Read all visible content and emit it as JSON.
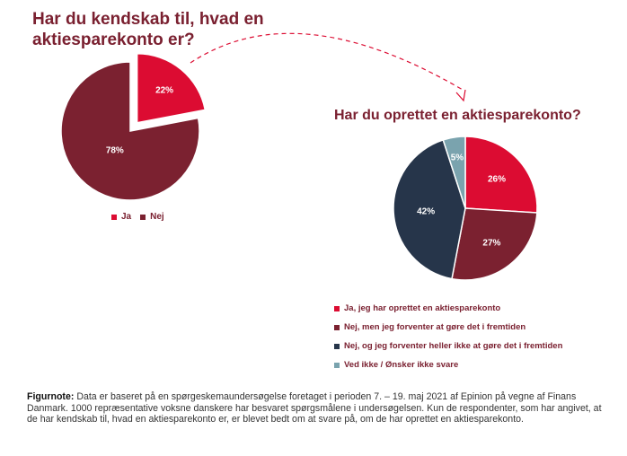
{
  "chart_data": [
    {
      "type": "pie",
      "title": "Har du kendskab til, hvad en aktiesparekonto er?",
      "categories": [
        "Ja",
        "Nej"
      ],
      "values": [
        22,
        78
      ],
      "value_labels": [
        "22%",
        "78%"
      ],
      "colors": [
        "#dc0c32",
        "#7b2130"
      ],
      "exploded": [
        "Ja"
      ],
      "legend_position": "bottom"
    },
    {
      "type": "pie",
      "title": "Har du oprettet en aktiesparekonto?",
      "categories": [
        "Ja, jeg har oprettet en aktiesparekonto",
        "Nej, men jeg forventer at gøre det i fremtiden",
        "Nej, og jeg forventer heller ikke at gøre det i fremtiden",
        "Ved ikke / Ønsker ikke svare"
      ],
      "values": [
        26,
        27,
        42,
        5
      ],
      "value_labels": [
        "26%",
        "27%",
        "42%",
        "5%"
      ],
      "colors": [
        "#dc0c32",
        "#7b2130",
        "#26354a",
        "#7aa3ae"
      ],
      "legend_position": "bottom"
    }
  ],
  "note": {
    "label": "Figurnote:",
    "text": " Data er baseret på en spørgeskemaundersøgelse foretaget i perioden 7. – 19. maj 2021 af Epinion på vegne af Finans Danmark. 1000 repræsentative voksne danskere har besvaret spørgsmålene i undersøgelsen. Kun de respondenter, som har angivet, at de har kendskab til, hvad en aktiesparekonto er, er blevet bedt om at svare på, om de har oprettet en aktiesparekonto."
  }
}
